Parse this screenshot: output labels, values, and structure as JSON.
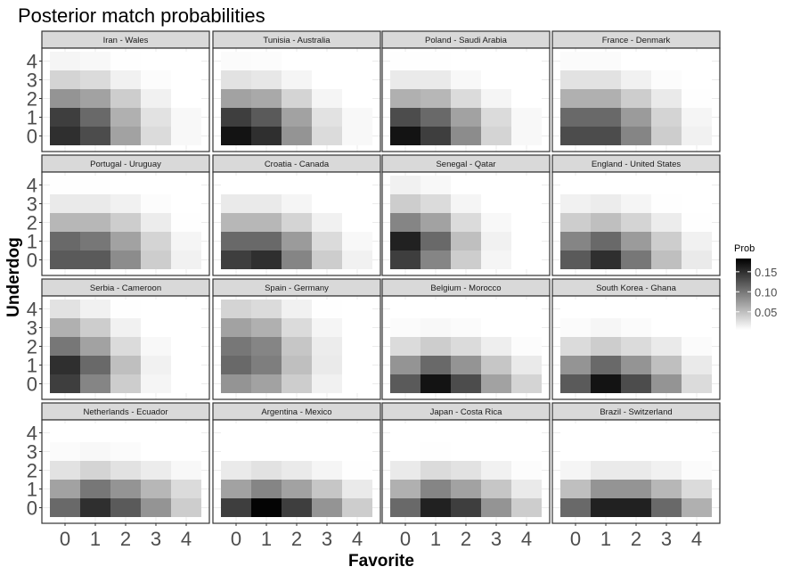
{
  "chart_data": {
    "type": "heatmap",
    "title": "Posterior match probabilities",
    "xlabel": "Favorite",
    "ylabel": "Underdog",
    "x_ticks": [
      "0",
      "1",
      "2",
      "3",
      "4"
    ],
    "y_ticks": [
      "0",
      "1",
      "2",
      "3",
      "4"
    ],
    "legend": {
      "title": "Prob",
      "ticks": [
        "0.15",
        "0.10",
        "0.05"
      ],
      "tick_values": [
        0.15,
        0.1,
        0.05
      ],
      "range": [
        0.005,
        0.183
      ],
      "placement": "right"
    },
    "panels": [
      {
        "name": "Iran - Wales",
        "z": [
          [
            0.15,
            0.13,
            0.07,
            0.03,
            0.01
          ],
          [
            0.14,
            0.11,
            0.06,
            0.025,
            0.01
          ],
          [
            0.08,
            0.07,
            0.04,
            0.015,
            0.005
          ],
          [
            0.035,
            0.03,
            0.015,
            0.007,
            0.003
          ],
          [
            0.012,
            0.01,
            0.006,
            0.003,
            0.001
          ]
        ]
      },
      {
        "name": "Tunisia - Australia",
        "z": [
          [
            0.17,
            0.15,
            0.08,
            0.03,
            0.01
          ],
          [
            0.14,
            0.12,
            0.07,
            0.025,
            0.01
          ],
          [
            0.07,
            0.065,
            0.035,
            0.012,
            0.004
          ],
          [
            0.025,
            0.022,
            0.012,
            0.005,
            0.002
          ],
          [
            0.008,
            0.007,
            0.004,
            0.002,
            0.001
          ]
        ]
      },
      {
        "name": "Poland - Saudi Arabia",
        "z": [
          [
            0.17,
            0.14,
            0.085,
            0.035,
            0.01
          ],
          [
            0.13,
            0.11,
            0.07,
            0.03,
            0.01
          ],
          [
            0.06,
            0.055,
            0.03,
            0.012,
            0.004
          ],
          [
            0.02,
            0.02,
            0.01,
            0.005,
            0.002
          ],
          [
            0.006,
            0.006,
            0.003,
            0.002,
            0.001
          ]
        ]
      },
      {
        "name": "France - Denmark",
        "z": [
          [
            0.13,
            0.13,
            0.09,
            0.04,
            0.015
          ],
          [
            0.11,
            0.11,
            0.075,
            0.035,
            0.012
          ],
          [
            0.06,
            0.06,
            0.04,
            0.02,
            0.006
          ],
          [
            0.025,
            0.025,
            0.015,
            0.007,
            0.003
          ],
          [
            0.008,
            0.008,
            0.005,
            0.003,
            0.001
          ]
        ]
      },
      {
        "name": "Portugal - Uruguay",
        "z": [
          [
            0.12,
            0.12,
            0.085,
            0.04,
            0.015
          ],
          [
            0.11,
            0.1,
            0.07,
            0.035,
            0.012
          ],
          [
            0.055,
            0.055,
            0.04,
            0.018,
            0.006
          ],
          [
            0.02,
            0.02,
            0.015,
            0.007,
            0.003
          ],
          [
            0.006,
            0.006,
            0.004,
            0.002,
            0.001
          ]
        ]
      },
      {
        "name": "Croatia - Canada",
        "z": [
          [
            0.14,
            0.15,
            0.09,
            0.04,
            0.015
          ],
          [
            0.11,
            0.11,
            0.075,
            0.03,
            0.01
          ],
          [
            0.055,
            0.055,
            0.035,
            0.015,
            0.005
          ],
          [
            0.02,
            0.02,
            0.012,
            0.005,
            0.002
          ],
          [
            0.005,
            0.005,
            0.003,
            0.001,
            0.001
          ]
        ]
      },
      {
        "name": "Senegal - Qatar",
        "z": [
          [
            0.14,
            0.09,
            0.04,
            0.012,
            0.003
          ],
          [
            0.16,
            0.11,
            0.05,
            0.015,
            0.004
          ],
          [
            0.09,
            0.07,
            0.03,
            0.01,
            0.002
          ],
          [
            0.04,
            0.03,
            0.012,
            0.004,
            0.001
          ],
          [
            0.015,
            0.01,
            0.004,
            0.001,
            0.001
          ]
        ]
      },
      {
        "name": "England - United States",
        "z": [
          [
            0.12,
            0.15,
            0.1,
            0.05,
            0.02
          ],
          [
            0.09,
            0.11,
            0.075,
            0.04,
            0.015
          ],
          [
            0.04,
            0.05,
            0.035,
            0.018,
            0.006
          ],
          [
            0.015,
            0.018,
            0.012,
            0.006,
            0.002
          ],
          [
            0.004,
            0.005,
            0.003,
            0.002,
            0.001
          ]
        ]
      },
      {
        "name": "Serbia - Cameroon",
        "z": [
          [
            0.14,
            0.09,
            0.04,
            0.012,
            0.003
          ],
          [
            0.15,
            0.11,
            0.05,
            0.015,
            0.004
          ],
          [
            0.1,
            0.07,
            0.03,
            0.01,
            0.002
          ],
          [
            0.06,
            0.04,
            0.015,
            0.005,
            0.001
          ],
          [
            0.025,
            0.015,
            0.006,
            0.002,
            0.001
          ]
        ]
      },
      {
        "name": "Spain - Germany",
        "z": [
          [
            0.08,
            0.07,
            0.04,
            0.015,
            0.004
          ],
          [
            0.11,
            0.095,
            0.05,
            0.02,
            0.005
          ],
          [
            0.1,
            0.09,
            0.045,
            0.018,
            0.005
          ],
          [
            0.07,
            0.06,
            0.03,
            0.012,
            0.003
          ],
          [
            0.035,
            0.03,
            0.015,
            0.006,
            0.002
          ]
        ]
      },
      {
        "name": "Belgium - Morocco",
        "z": [
          [
            0.12,
            0.17,
            0.13,
            0.07,
            0.035
          ],
          [
            0.08,
            0.11,
            0.08,
            0.045,
            0.02
          ],
          [
            0.03,
            0.04,
            0.03,
            0.017,
            0.007
          ],
          [
            0.008,
            0.01,
            0.008,
            0.005,
            0.002
          ],
          [
            0.002,
            0.003,
            0.002,
            0.001,
            0.001
          ]
        ]
      },
      {
        "name": "South Korea - Ghana",
        "z": [
          [
            0.12,
            0.17,
            0.13,
            0.08,
            0.03
          ],
          [
            0.08,
            0.11,
            0.08,
            0.05,
            0.02
          ],
          [
            0.03,
            0.04,
            0.03,
            0.02,
            0.008
          ],
          [
            0.008,
            0.011,
            0.008,
            0.005,
            0.002
          ],
          [
            0.002,
            0.003,
            0.002,
            0.001,
            0.001
          ]
        ]
      },
      {
        "name": "Netherlands - Ecuador",
        "z": [
          [
            0.11,
            0.15,
            0.12,
            0.08,
            0.04
          ],
          [
            0.07,
            0.1,
            0.08,
            0.055,
            0.03
          ],
          [
            0.025,
            0.035,
            0.025,
            0.018,
            0.01
          ],
          [
            0.008,
            0.01,
            0.008,
            0.005,
            0.003
          ],
          [
            0.002,
            0.002,
            0.002,
            0.001,
            0.001
          ]
        ]
      },
      {
        "name": "Argentina - Mexico",
        "z": [
          [
            0.14,
            0.18,
            0.14,
            0.08,
            0.04
          ],
          [
            0.07,
            0.09,
            0.07,
            0.045,
            0.02
          ],
          [
            0.02,
            0.025,
            0.02,
            0.012,
            0.006
          ],
          [
            0.004,
            0.005,
            0.004,
            0.003,
            0.001
          ],
          [
            0.001,
            0.001,
            0.001,
            0.001,
            0.001
          ]
        ]
      },
      {
        "name": "Japan - Costa Rica",
        "z": [
          [
            0.11,
            0.16,
            0.14,
            0.08,
            0.04
          ],
          [
            0.06,
            0.09,
            0.07,
            0.045,
            0.02
          ],
          [
            0.02,
            0.03,
            0.025,
            0.015,
            0.007
          ],
          [
            0.005,
            0.006,
            0.005,
            0.003,
            0.002
          ],
          [
            0.001,
            0.001,
            0.001,
            0.001,
            0.001
          ]
        ]
      },
      {
        "name": "Brazil - Switzerland",
        "z": [
          [
            0.11,
            0.16,
            0.16,
            0.11,
            0.06
          ],
          [
            0.05,
            0.08,
            0.08,
            0.055,
            0.03
          ],
          [
            0.012,
            0.02,
            0.02,
            0.015,
            0.008
          ],
          [
            0.003,
            0.004,
            0.004,
            0.003,
            0.002
          ],
          [
            0.001,
            0.001,
            0.001,
            0.001,
            0.001
          ]
        ]
      }
    ]
  }
}
